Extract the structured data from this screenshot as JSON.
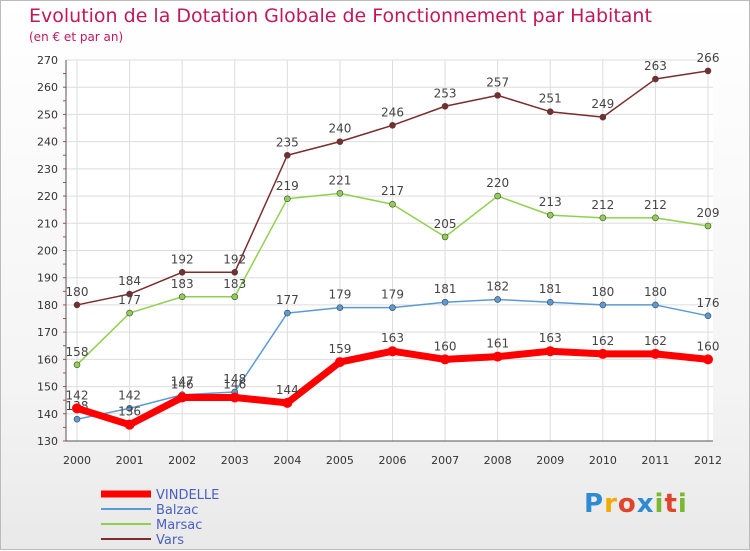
{
  "chart_data": {
    "type": "line",
    "title": "Evolution de la Dotation Globale de Fonctionnement par Habitant",
    "subtitle": "(en € et par an)",
    "categories": [
      "2000",
      "2001",
      "2002",
      "2003",
      "2004",
      "2005",
      "2006",
      "2007",
      "2008",
      "2009",
      "2010",
      "2011",
      "2012"
    ],
    "ylim": [
      130,
      270
    ],
    "yticks": [
      130,
      140,
      150,
      160,
      170,
      180,
      190,
      200,
      210,
      220,
      230,
      240,
      250,
      260,
      270
    ],
    "grid": true,
    "legend_position": "bottom-left",
    "series": [
      {
        "name": "VINDELLE",
        "color": "#ff0000",
        "values": [
          142,
          136,
          146,
          146,
          144,
          159,
          163,
          160,
          161,
          163,
          162,
          162,
          160
        ]
      },
      {
        "name": "Balzac",
        "color": "#5b9bd5",
        "values": [
          138,
          142,
          147,
          148,
          177,
          179,
          179,
          181,
          182,
          181,
          180,
          180,
          176
        ]
      },
      {
        "name": "Marsac",
        "color": "#8fd14f",
        "values": [
          158,
          177,
          183,
          183,
          219,
          221,
          217,
          205,
          220,
          213,
          212,
          212,
          209
        ]
      },
      {
        "name": "Vars",
        "color": "#7b2c2c",
        "values": [
          180,
          184,
          192,
          192,
          235,
          240,
          246,
          253,
          257,
          251,
          249,
          263,
          266
        ]
      }
    ]
  },
  "logo": {
    "text": "Proxiti",
    "letters": [
      "P",
      "r",
      "o",
      "x",
      "i",
      "t",
      "i"
    ]
  }
}
